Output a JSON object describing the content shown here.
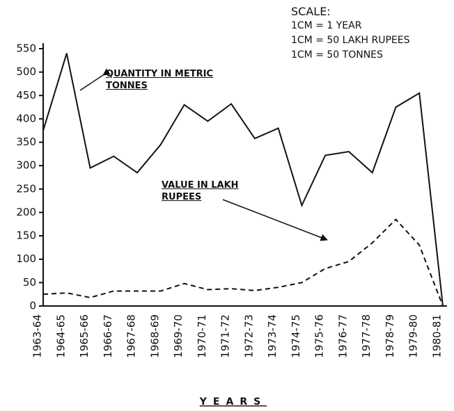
{
  "chart_data": {
    "type": "line",
    "x_label": "YEARS",
    "scale": {
      "title": "SCALE:",
      "lines": [
        "1CM = 1 YEAR",
        "1CM = 50 LAKH RUPEES",
        "1CM = 50 TONNES"
      ]
    },
    "categories": [
      "1963-64",
      "1964-65",
      "1965-66",
      "1966-67",
      "1967-68",
      "1968-69",
      "1969-70",
      "1970-71",
      "1971-72",
      "1972-73",
      "1973-74",
      "1974-75",
      "1975-76",
      "1976-77",
      "1977-78",
      "1978-79",
      "1979-80",
      "1980-81"
    ],
    "series": [
      {
        "name": "QUANTITY IN METRIC TONNES",
        "color": "#111111",
        "dash": "solid",
        "values": [
          375,
          540,
          295,
          320,
          285,
          345,
          430,
          395,
          432,
          358,
          380,
          215,
          322,
          330,
          285,
          425,
          455,
          0
        ]
      },
      {
        "name": "VALUE IN LAKH RUPEES",
        "color": "#111111",
        "dash": "dashed",
        "values": [
          25,
          28,
          18,
          32,
          32,
          32,
          48,
          35,
          37,
          33,
          40,
          50,
          80,
          95,
          135,
          185,
          130,
          0
        ]
      }
    ],
    "ylim": [
      0,
      550
    ],
    "yticks": [
      0,
      50,
      100,
      150,
      200,
      250,
      300,
      350,
      400,
      450,
      500,
      550
    ],
    "grid": false
  }
}
